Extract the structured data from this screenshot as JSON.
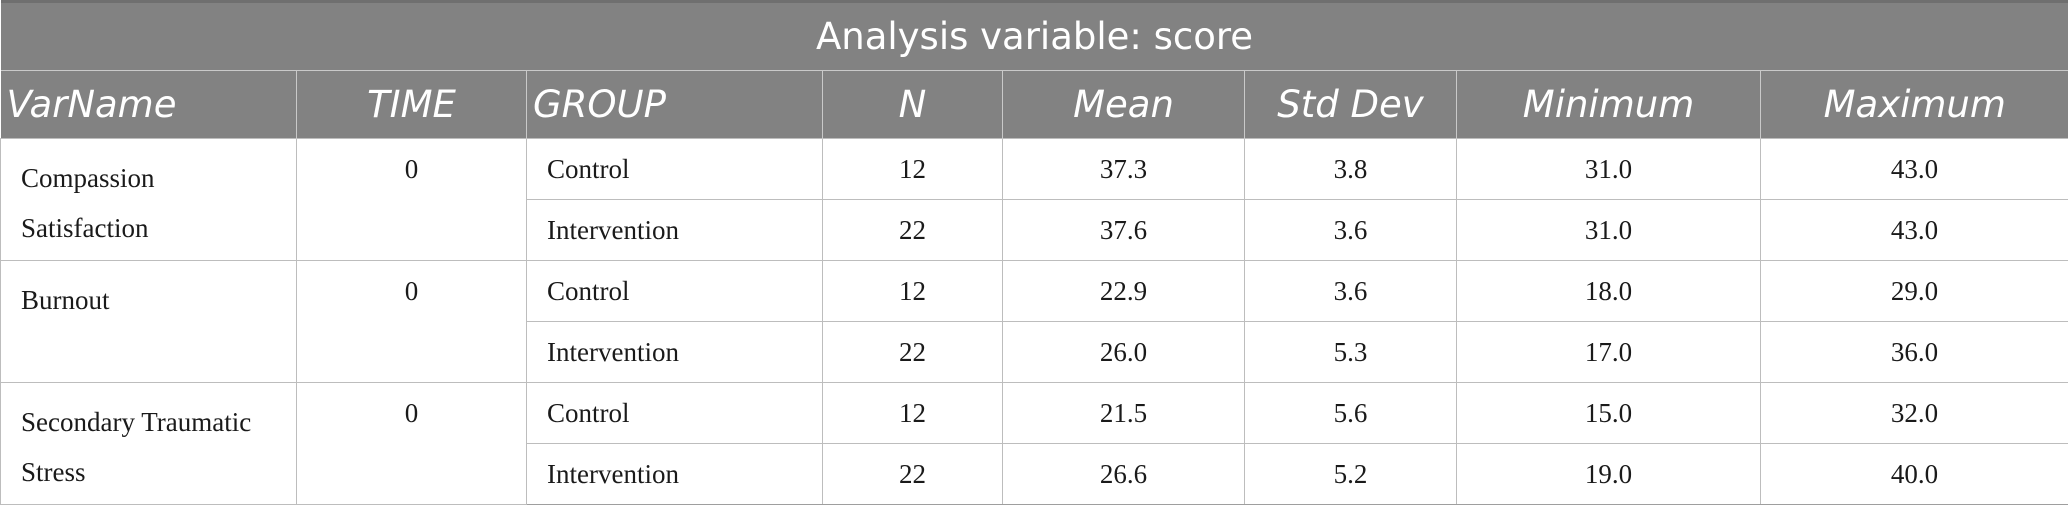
{
  "table": {
    "caption": "Analysis variable: score",
    "columns": [
      "VarName",
      "TIME",
      "GROUP",
      "N",
      "Mean",
      "Std Dev",
      "Minimum",
      "Maximum"
    ],
    "groups": [
      {
        "var_name": "Compassion Satisfaction",
        "time": "0",
        "rows": [
          {
            "group": "Control",
            "n": "12",
            "mean": "37.3",
            "std_dev": "3.8",
            "minimum": "31.0",
            "maximum": "43.0"
          },
          {
            "group": "Intervention",
            "n": "22",
            "mean": "37.6",
            "std_dev": "3.6",
            "minimum": "31.0",
            "maximum": "43.0"
          }
        ]
      },
      {
        "var_name": "Burnout",
        "time": "0",
        "rows": [
          {
            "group": "Control",
            "n": "12",
            "mean": "22.9",
            "std_dev": "3.6",
            "minimum": "18.0",
            "maximum": "29.0"
          },
          {
            "group": "Intervention",
            "n": "22",
            "mean": "26.0",
            "std_dev": "5.3",
            "minimum": "17.0",
            "maximum": "36.0"
          }
        ]
      },
      {
        "var_name": "Secondary Traumatic Stress",
        "time": "0",
        "rows": [
          {
            "group": "Control",
            "n": "12",
            "mean": "21.5",
            "std_dev": "5.6",
            "minimum": "15.0",
            "maximum": "32.0"
          },
          {
            "group": "Intervention",
            "n": "22",
            "mean": "26.6",
            "std_dev": "5.2",
            "minimum": "19.0",
            "maximum": "40.0"
          }
        ]
      }
    ]
  },
  "colors": {
    "header_background": "#828282",
    "header_text": "#ffffff",
    "grid_line": "#bdbdbd"
  }
}
